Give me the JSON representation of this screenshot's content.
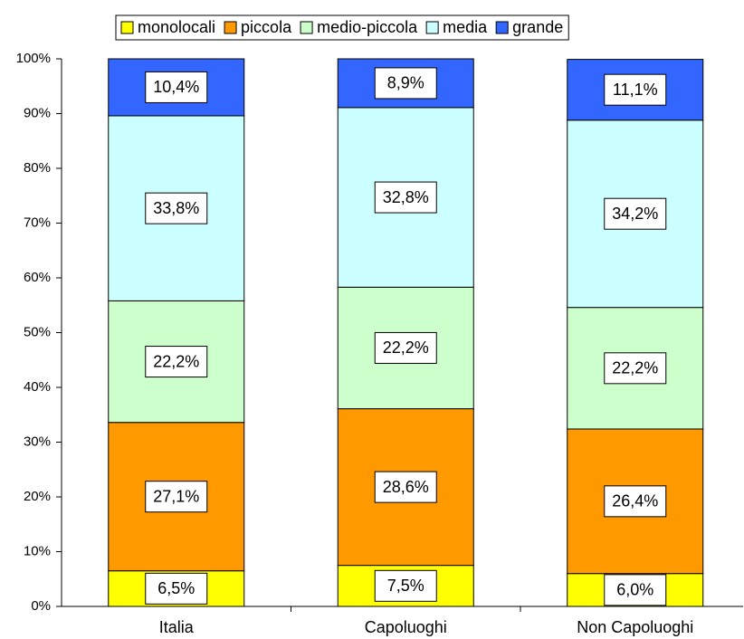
{
  "chart_data": {
    "type": "stacked-bar",
    "categories": [
      "Italia",
      "Capoluoghi",
      "Non Capoluoghi"
    ],
    "series": [
      {
        "name": "monolocali",
        "color": "#ffff00",
        "values": [
          6.5,
          7.5,
          6.0
        ],
        "value_labels": [
          "6,5%",
          "7,5%",
          "6,0%"
        ]
      },
      {
        "name": "piccola",
        "color": "#ff9900",
        "values": [
          27.1,
          28.6,
          26.4
        ],
        "value_labels": [
          "27,1%",
          "28,6%",
          "26,4%"
        ]
      },
      {
        "name": "medio-piccola",
        "color": "#ccffcc",
        "values": [
          22.2,
          22.2,
          22.2
        ],
        "value_labels": [
          "22,2%",
          "22,2%",
          "22,2%"
        ]
      },
      {
        "name": "media",
        "color": "#ccffff",
        "values": [
          33.8,
          32.8,
          34.2
        ],
        "value_labels": [
          "33,8%",
          "32,8%",
          "34,2%"
        ]
      },
      {
        "name": "grande",
        "color": "#3366ff",
        "values": [
          10.4,
          8.9,
          11.1
        ],
        "value_labels": [
          "10,4%",
          "8,9%",
          "11,1%"
        ]
      }
    ],
    "ylim": [
      0,
      100
    ],
    "yticks": [
      {
        "value": 0,
        "label": "0%"
      },
      {
        "value": 10,
        "label": "10%"
      },
      {
        "value": 20,
        "label": "20%"
      },
      {
        "value": 30,
        "label": "30%"
      },
      {
        "value": 40,
        "label": "40%"
      },
      {
        "value": 50,
        "label": "50%"
      },
      {
        "value": 60,
        "label": "60%"
      },
      {
        "value": 70,
        "label": "70%"
      },
      {
        "value": 80,
        "label": "80%"
      },
      {
        "value": 90,
        "label": "90%"
      },
      {
        "value": 100,
        "label": "100%"
      }
    ],
    "grid": false,
    "legend": "top"
  }
}
